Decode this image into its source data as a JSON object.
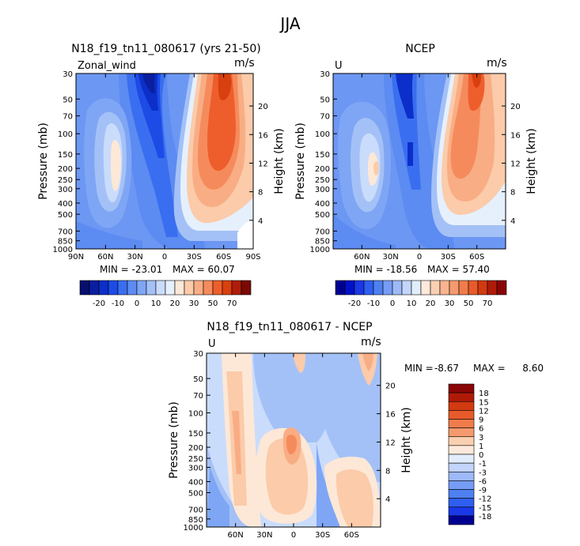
{
  "page_title": "JJA",
  "colors": {
    "cb1": [
      "#080F6E",
      "#0A1EA0",
      "#0B2FC8",
      "#1C4BE6",
      "#3A6EF0",
      "#5C8BF2",
      "#7FA6F5",
      "#A4C1F7",
      "#CADCFB",
      "#E6F0FD",
      "#FDE8D7",
      "#FBCBAA",
      "#F9AD84",
      "#F58B5C",
      "#EE5E2C",
      "#D9400F",
      "#B01C0A",
      "#7A0A05"
    ],
    "cb2": [
      "#000090",
      "#0010C8",
      "#1A38E6",
      "#2F5EF0",
      "#4F80F2",
      "#769CF5",
      "#9DB9F7",
      "#C3D5FA",
      "#E2EDFC",
      "#FEEADC",
      "#FAD0B2",
      "#F8B48E",
      "#F59A6E",
      "#F07C4C",
      "#E85A2A",
      "#D23A10",
      "#B01B08",
      "#8A0505"
    ],
    "bg": "#6C97F3"
  },
  "chart_data": [
    {
      "type": "contour",
      "title": "N18_f19_tn11_080617 (yrs 21-50)",
      "left_label": "Zonal_wind",
      "units": "m/s",
      "ylabel": "Pressure (mb)",
      "ylabel_right": "Height (km)",
      "pressure_ticks": [
        "30",
        "50",
        "70",
        "100",
        "150",
        "200",
        "250",
        "300",
        "400",
        "500",
        "700",
        "850",
        "1000"
      ],
      "height_ticks": [
        "20",
        "16",
        "12",
        "8",
        "4"
      ],
      "lat_ticks": [
        "90N",
        "60N",
        "30N",
        "0",
        "30S",
        "60S",
        "90S"
      ],
      "min_label": "MIN = -23.01",
      "max_label": "MAX = 60.07",
      "min": -23.01,
      "max": 60.07
    },
    {
      "type": "contour",
      "title": "NCEP",
      "left_label": "U",
      "units": "m/s",
      "ylabel": "Pressure (mb)",
      "ylabel_right": "Height (km)",
      "pressure_ticks": [
        "30",
        "50",
        "70",
        "100",
        "150",
        "200",
        "250",
        "300",
        "400",
        "500",
        "700",
        "850",
        "1000"
      ],
      "height_ticks": [
        "20",
        "16",
        "12",
        "8",
        "4"
      ],
      "lat_ticks": [
        "60N",
        "30N",
        "0",
        "30S",
        "60S"
      ],
      "min_label": "MIN = -18.56",
      "max_label": "MAX = 57.40",
      "min": -18.56,
      "max": 57.4
    },
    {
      "type": "contour",
      "title": "N18_f19_tn11_080617 - NCEP",
      "left_label": "U",
      "units": "m/s",
      "ylabel": "Pressure (mb)",
      "ylabel_right": "Height (km)",
      "pressure_ticks": [
        "30",
        "50",
        "70",
        "100",
        "150",
        "200",
        "250",
        "300",
        "400",
        "500",
        "700",
        "850",
        "1000"
      ],
      "height_ticks": [
        "20",
        "16",
        "12",
        "8",
        "4"
      ],
      "lat_ticks": [
        "60N",
        "30N",
        "0",
        "30S",
        "60S"
      ],
      "min_label": "MIN =",
      "min_value": "-8.67",
      "max_label": "MAX =",
      "max_value": "8.60",
      "min": -8.67,
      "max": 8.6
    }
  ],
  "colorbars": {
    "main_labels": [
      "-20",
      "-10",
      "0",
      "10",
      "20",
      "30",
      "50",
      "70"
    ],
    "diff_labels": [
      "18",
      "15",
      "12",
      "9",
      "6",
      "3",
      "1",
      "0",
      "-1",
      "-3",
      "-6",
      "-9",
      "-12",
      "-15",
      "-18"
    ]
  }
}
